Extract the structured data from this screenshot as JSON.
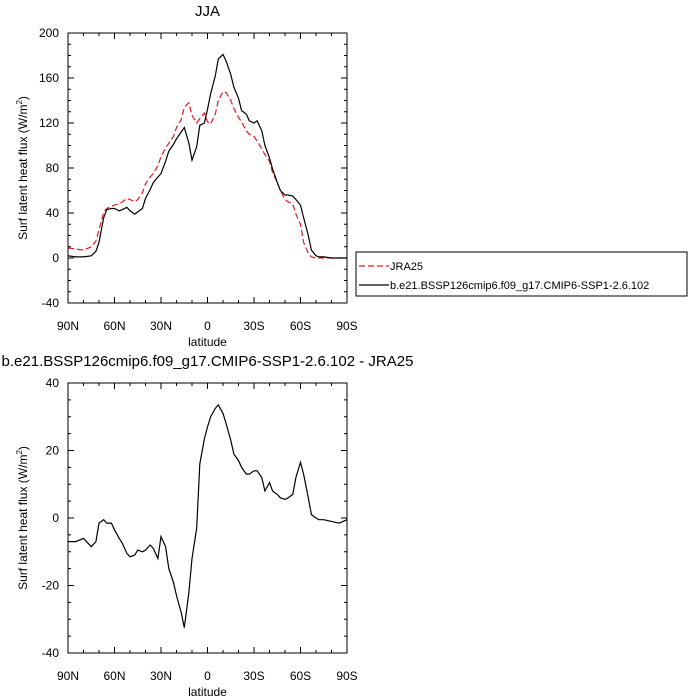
{
  "chart_data": [
    {
      "type": "line",
      "title": "JJA",
      "xlabel": "latitude",
      "ylabel_main": "Surf latent heat flux (W/m",
      "ylabel_sup": "2",
      "ylabel_tail": ")",
      "xlim": [
        90,
        -90
      ],
      "ylim": [
        -40,
        200
      ],
      "x_tick_values": [
        90,
        60,
        30,
        0,
        -30,
        -60,
        -90
      ],
      "x_tick_labels": [
        "90N",
        "60N",
        "30N",
        "0",
        "30S",
        "60S",
        "90S"
      ],
      "y_tick_values": [
        -40,
        0,
        40,
        80,
        120,
        160,
        200
      ],
      "y_tick_labels": [
        "-40",
        "0",
        "40",
        "80",
        "120",
        "160",
        "200"
      ],
      "legend_position": "right, outside plot",
      "legend": [
        "JRA25",
        "b.e21.BSSP126cmip6.f09_g17.CMIP6-SSP1-2.6.102"
      ],
      "series": [
        {
          "name": "JRA25",
          "color": "#e41a1c",
          "dash": "dashed",
          "x": [
            90,
            85,
            80,
            75,
            72,
            70,
            67,
            65,
            62,
            60,
            57,
            55,
            52,
            50,
            47,
            45,
            42,
            40,
            37,
            35,
            32,
            30,
            27,
            25,
            22,
            20,
            17,
            15,
            12,
            10,
            7,
            5,
            2,
            0,
            -2,
            -5,
            -7,
            -10,
            -12,
            -15,
            -17,
            -20,
            -22,
            -25,
            -27,
            -30,
            -32,
            -35,
            -37,
            -40,
            -42,
            -45,
            -47,
            -50,
            -52,
            -55,
            -57,
            -60,
            -62,
            -65,
            -67,
            -70,
            -72,
            -75,
            -80,
            -85,
            -90
          ],
          "y": [
            9,
            8,
            7,
            10,
            15,
            25,
            41,
            44,
            46,
            47,
            48,
            50,
            53,
            52,
            50,
            52,
            58,
            66,
            72,
            75,
            82,
            90,
            98,
            102,
            108,
            116,
            123,
            134,
            138,
            127,
            120,
            124,
            129,
            121,
            119,
            128,
            140,
            148,
            147,
            140,
            133,
            125,
            121,
            113,
            110,
            108,
            104,
            97,
            92,
            86,
            76,
            67,
            60,
            52,
            50,
            48,
            39,
            30,
            14,
            4,
            1,
            0,
            0,
            0,
            0,
            0,
            0
          ]
        },
        {
          "name": "b.e21.BSSP126cmip6.f09_g17.CMIP6-SSP1-2.6.102",
          "color": "#000000",
          "dash": "solid",
          "x": [
            90,
            85,
            80,
            75,
            72,
            70,
            67,
            65,
            62,
            60,
            57,
            55,
            52,
            50,
            47,
            45,
            42,
            40,
            37,
            35,
            32,
            30,
            27,
            25,
            22,
            20,
            17,
            15,
            12,
            10,
            7,
            5,
            2,
            0,
            -2,
            -5,
            -7,
            -10,
            -12,
            -15,
            -17,
            -20,
            -22,
            -25,
            -27,
            -30,
            -32,
            -35,
            -37,
            -40,
            -42,
            -45,
            -47,
            -50,
            -52,
            -55,
            -57,
            -60,
            -62,
            -65,
            -67,
            -70,
            -72,
            -75,
            -80,
            -85,
            -90
          ],
          "y": [
            2,
            1,
            1,
            2,
            6,
            14,
            36,
            43,
            44,
            44,
            42,
            43,
            45,
            42,
            39,
            41,
            44,
            53,
            61,
            67,
            72,
            75,
            86,
            95,
            101,
            106,
            112,
            116,
            102,
            87,
            99,
            118,
            120,
            132,
            146,
            162,
            177,
            181,
            175,
            163,
            152,
            142,
            131,
            128,
            122,
            120,
            122,
            113,
            100,
            89,
            79,
            67,
            60,
            56,
            56,
            55,
            52,
            47,
            36,
            20,
            7,
            2,
            1,
            1,
            0,
            0,
            0
          ]
        }
      ]
    },
    {
      "type": "line",
      "title": "b.e21.BSSP126cmip6.f09_g17.CMIP6-SSP1-2.6.102 - JRA25",
      "xlabel": "latitude",
      "ylabel_main": "Surf latent heat flux (W/m",
      "ylabel_sup": "2",
      "ylabel_tail": ")",
      "xlim": [
        90,
        -90
      ],
      "ylim": [
        -40,
        40
      ],
      "x_tick_values": [
        90,
        60,
        30,
        0,
        -30,
        -60,
        -90
      ],
      "x_tick_labels": [
        "90N",
        "60N",
        "30N",
        "0",
        "30S",
        "60S",
        "90S"
      ],
      "y_tick_values": [
        -40,
        -20,
        0,
        20,
        40
      ],
      "y_tick_labels": [
        "-40",
        "-20",
        "0",
        "20",
        "40"
      ],
      "series": [
        {
          "color": "#000000",
          "dash": "solid",
          "x": [
            90,
            85,
            80,
            75,
            72,
            70,
            67,
            65,
            62,
            60,
            57,
            55,
            52,
            50,
            47,
            45,
            42,
            40,
            37,
            35,
            32,
            30,
            27,
            25,
            22,
            20,
            17,
            15,
            12,
            10,
            7,
            5,
            2,
            0,
            -2,
            -5,
            -7,
            -10,
            -12,
            -15,
            -17,
            -20,
            -22,
            -25,
            -27,
            -30,
            -32,
            -35,
            -37,
            -40,
            -42,
            -45,
            -47,
            -50,
            -52,
            -55,
            -57,
            -60,
            -62,
            -65,
            -67,
            -70,
            -72,
            -75,
            -80,
            -85,
            -90
          ],
          "y": [
            -7,
            -7,
            -6,
            -8.5,
            -7,
            -1.5,
            -0.5,
            -1.5,
            -1.5,
            -3.5,
            -6,
            -7.5,
            -10.5,
            -11.5,
            -11,
            -9.5,
            -10,
            -9.5,
            -8,
            -9,
            -12,
            -5.5,
            -8.5,
            -15,
            -19,
            -23,
            -28,
            -32.5,
            -22,
            -12,
            -3,
            16,
            23.5,
            27,
            30,
            32.5,
            33.5,
            31,
            28,
            23,
            19,
            17,
            15,
            13,
            13,
            14,
            14,
            12,
            8,
            10.5,
            8,
            7,
            6,
            5.5,
            6,
            7,
            12,
            16.5,
            13,
            6,
            1,
            0,
            -0.5,
            -0.5,
            -1,
            -1.5,
            -0.5
          ]
        }
      ]
    }
  ]
}
